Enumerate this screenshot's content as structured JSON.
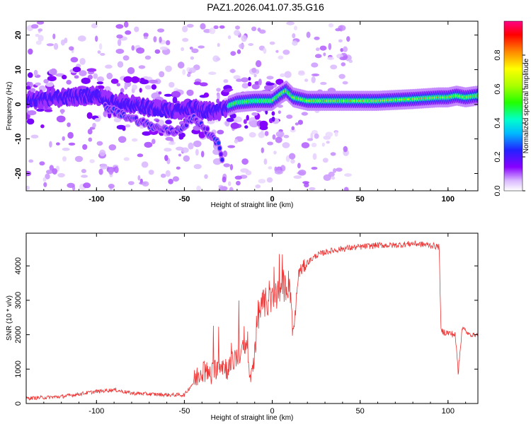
{
  "title": "PAZ1.2026.041.07.35.G16",
  "chart_data": [
    {
      "type": "heatmap",
      "title": "PAZ1.2026.041.07.35.G16",
      "xlabel": "Height of straight line (km)",
      "ylabel": "Frequency (Hz)",
      "xlim": [
        -140,
        117
      ],
      "ylim": [
        -25,
        24
      ],
      "xticks": [
        -100,
        -50,
        0,
        50,
        100
      ],
      "xtick_labels": [
        "-100",
        "-50",
        "0",
        "50",
        "100"
      ],
      "yticks": [
        -20,
        -10,
        0,
        10,
        20
      ],
      "ytick_labels": [
        "-20",
        "-10",
        "0",
        "10",
        "20"
      ],
      "colorbar": {
        "label": "Normalized spectral amplitude",
        "ticks": [
          0.0,
          0.2,
          0.4,
          0.6,
          0.8
        ],
        "tick_labels": [
          "0.0",
          "0.2",
          "0.4",
          "0.6",
          "0.8"
        ],
        "range": [
          0,
          1
        ]
      },
      "ridge": {
        "description_points_x": [
          -140,
          -120,
          -100,
          -90,
          -80,
          -70,
          -55,
          -45,
          -40,
          -35,
          -30,
          -25,
          -20,
          -10,
          0,
          5,
          8,
          12,
          20,
          40,
          60,
          80,
          95,
          100,
          105,
          110,
          117
        ],
        "description_points_y": [
          1,
          2,
          2.5,
          0.5,
          0,
          -1,
          -2,
          -1,
          -2,
          -2,
          -2,
          -0.5,
          0.5,
          1,
          1,
          3,
          4,
          2,
          1,
          1,
          1,
          1.5,
          2,
          2,
          2.5,
          2,
          2.5
        ]
      },
      "secondary_ridge": {
        "x": [
          -95,
          -85,
          -75,
          -65,
          -55,
          -50,
          -45,
          -40,
          -35,
          -30,
          -28
        ],
        "y": [
          -1,
          -3,
          -5,
          -7,
          -8,
          -6,
          -4,
          -6,
          -9,
          -12,
          -17
        ]
      }
    },
    {
      "type": "line",
      "xlabel": "Height of straight line (km)",
      "ylabel": "SNR (10 * v/v)",
      "xlim": [
        -140,
        117
      ],
      "ylim": [
        0,
        4950
      ],
      "xticks": [
        -100,
        -50,
        0,
        50,
        100
      ],
      "xtick_labels": [
        "-100",
        "-50",
        "0",
        "50",
        "100"
      ],
      "yticks": [
        0,
        1000,
        2000,
        3000,
        4000
      ],
      "ytick_labels": [
        "0",
        "1000",
        "2000",
        "3000",
        "4000"
      ],
      "color": "#ee3333",
      "series": [
        {
          "name": "SNR",
          "x": [
            -140,
            -120,
            -100,
            -90,
            -80,
            -60,
            -50,
            -45,
            -40,
            -35,
            -30,
            -25,
            -20,
            -15,
            -12,
            -8,
            -5,
            0,
            5,
            10,
            12,
            15,
            20,
            25,
            30,
            40,
            50,
            60,
            70,
            80,
            90,
            95,
            96,
            100,
            104,
            106,
            108,
            112,
            117
          ],
          "y": [
            150,
            200,
            350,
            400,
            300,
            250,
            250,
            600,
            1000,
            800,
            1200,
            1000,
            1400,
            1600,
            600,
            2600,
            2900,
            3000,
            3300,
            3500,
            2000,
            3800,
            4100,
            4300,
            4400,
            4500,
            4550,
            4600,
            4600,
            4650,
            4600,
            4550,
            2100,
            2050,
            2000,
            1000,
            2200,
            2000,
            2000
          ]
        }
      ]
    }
  ]
}
